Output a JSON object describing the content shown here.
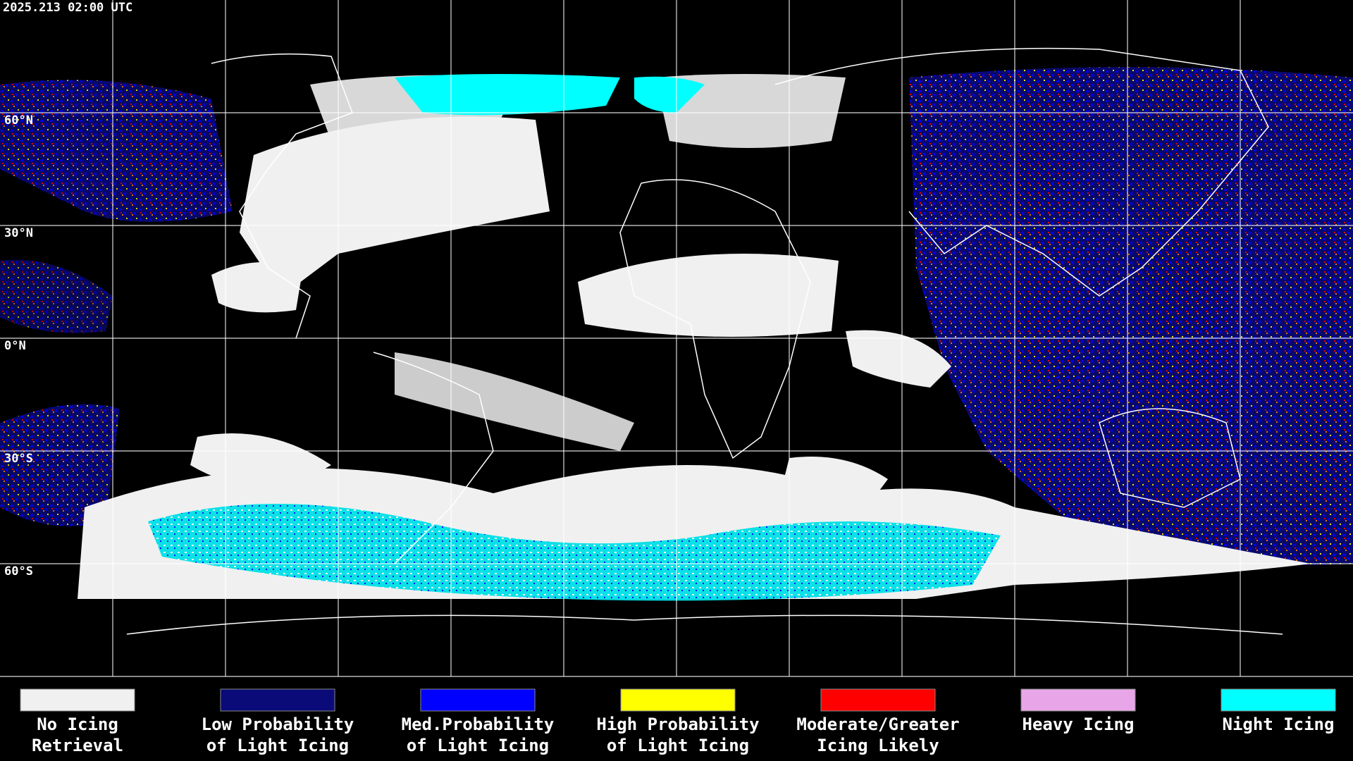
{
  "header": {
    "timestamp": "2025.213 02:00 UTC"
  },
  "map": {
    "latitude_labels": [
      "60°N",
      "30°N",
      "0°N",
      "30°S",
      "60°S"
    ]
  },
  "legend": [
    {
      "label": [
        "No Icing",
        "Retrieval"
      ],
      "color": "#f0f0f0"
    },
    {
      "label": [
        "Low Probability",
        "of Light Icing"
      ],
      "color": "#0a0a78"
    },
    {
      "label": [
        "Med.Probability",
        "of Light Icing"
      ],
      "color": "#0000ff"
    },
    {
      "label": [
        "High Probability",
        "of Light Icing"
      ],
      "color": "#ffff00"
    },
    {
      "label": [
        "Moderate/Greater",
        "Icing Likely"
      ],
      "color": "#ff0000"
    },
    {
      "label": [
        "Heavy Icing"
      ],
      "color": "#e8a6e8"
    },
    {
      "label": [
        "Night Icing"
      ],
      "color": "#00ffff"
    }
  ]
}
